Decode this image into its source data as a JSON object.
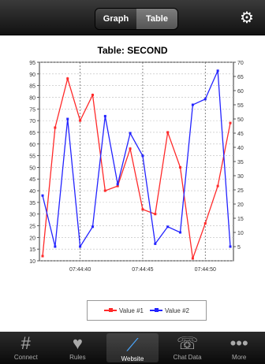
{
  "segments": {
    "graph": "Graph",
    "table": "Table"
  },
  "icons": {
    "settings": "gear-icon"
  },
  "chart": {
    "title": "Table: SECOND"
  },
  "tabs": [
    {
      "label": "Connect",
      "icon": "grid-icon"
    },
    {
      "label": "Rules",
      "icon": "heart-icon"
    },
    {
      "label": "Website",
      "icon": "chart-icon"
    },
    {
      "label": "Chat Data",
      "icon": "chat-icon"
    },
    {
      "label": "More",
      "icon": "more-icon"
    }
  ],
  "colors": {
    "series1": "#ff2a2a",
    "series2": "#2323ff",
    "grid": "#bbbbbb"
  },
  "chart_data": {
    "type": "line",
    "title": "Table: SECOND",
    "x_ticks": [
      "07:44:40",
      "07:44:45",
      "07:44:50"
    ],
    "left_axis": {
      "min": 10,
      "max": 95,
      "ticks": [
        10,
        15,
        20,
        25,
        30,
        35,
        40,
        45,
        50,
        55,
        60,
        65,
        70,
        75,
        80,
        85,
        90,
        95
      ]
    },
    "right_axis": {
      "min": 0,
      "max": 70,
      "ticks": [
        5,
        10,
        15,
        20,
        25,
        30,
        35,
        40,
        45,
        50,
        55,
        60,
        65,
        70
      ]
    },
    "legend_position": "bottom-center",
    "series": [
      {
        "name": "Value #1",
        "color": "#ff2a2a",
        "axis": "left",
        "values": [
          12,
          67,
          88,
          70,
          81,
          40,
          42,
          58,
          32,
          30,
          65,
          50,
          11,
          26,
          42,
          69
        ]
      },
      {
        "name": "Value #2",
        "color": "#2323ff",
        "axis": "right",
        "values": [
          23,
          5,
          50,
          5,
          12,
          51,
          27,
          45,
          37,
          6,
          12,
          10,
          55,
          57,
          67,
          5
        ]
      }
    ]
  }
}
